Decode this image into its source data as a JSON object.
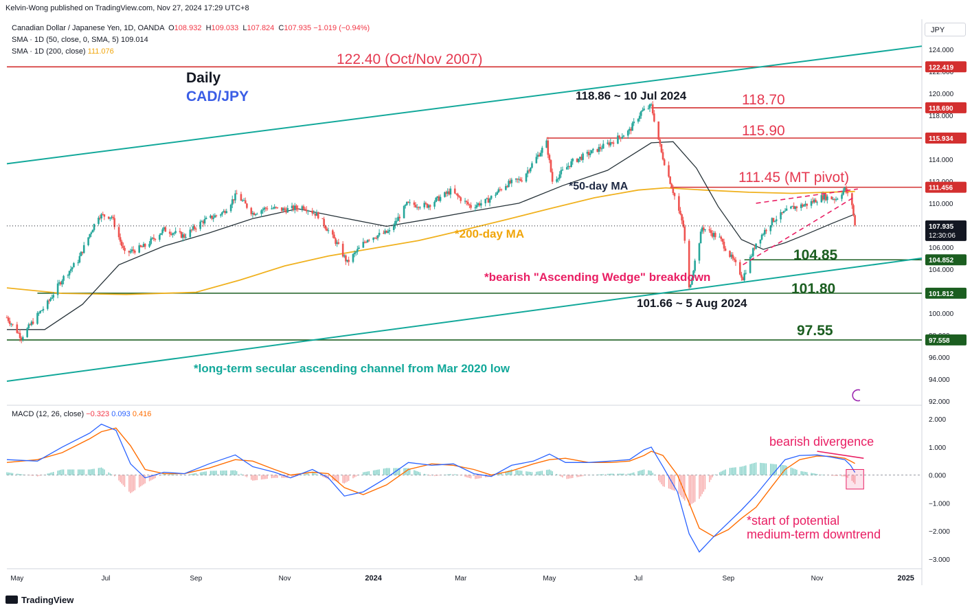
{
  "header": {
    "published": "Kelvin-Wong published on TradingView.com, Nov 27, 2024 17:29 UTC+8",
    "symbol_title": "Canadian Dollar / Japanese Yen, 1D, OANDA",
    "ohlc": {
      "o_label": "O",
      "o": "108.932",
      "h_label": "H",
      "h": "109.033",
      "l_label": "L",
      "l": "107.824",
      "c_label": "C",
      "c": "107.935",
      "change": "−1.019 (−0.94%)"
    },
    "sma50_label": "SMA · 1D (50, close, 0, SMA, 5)",
    "sma50_value": "109.014",
    "sma200_label": "SMA · 1D (200, close)",
    "sma200_value": "111.076",
    "macd_label": "MACD (12, 26, close)",
    "macd_hist": "−0.323",
    "macd_line": "0.093",
    "macd_signal": "0.416",
    "unit": "JPY",
    "countdown": "12:30:06",
    "logo": "TradingView"
  },
  "colors": {
    "bull": "#26a69a",
    "bear": "#ef5350",
    "resistance": "#d32f2f",
    "support": "#1b5e20",
    "channel": "#12a89a",
    "sma50": "#263238",
    "sma200": "#f0b11e",
    "macd": "#2962ff",
    "signal": "#ff6d00",
    "annotation": "#e91e63"
  },
  "annotations": {
    "daily": "Daily",
    "pair": "CAD/JPY",
    "r122": "122.40 (Oct/Nov 2007)",
    "high_jul": "118.86 ~ 10 Jul 2024",
    "r118": "118.70",
    "r115": "115.90",
    "pivot": "111.45 (MT pivot)",
    "ma50": "*50-day MA",
    "ma200": "*200-day MA",
    "s104": "104.85",
    "wedge": "*bearish \"Ascending Wedge\" breakdown",
    "s101": "101.80",
    "low_aug": "101.66 ~ 5 Aug 2024",
    "s97": "97.55",
    "channel": "*long-term secular ascending channel from Mar 2020 low",
    "divergence": "bearish divergence",
    "downtrend1": "*start of potential",
    "downtrend2": "medium-term downtrend"
  },
  "chart_data": [
    {
      "type": "candlestick",
      "title": "Canadian Dollar / Japanese Yen, 1D, OANDA",
      "ylim": [
        91.8,
        126.0
      ],
      "y_ticks": [
        "92.000",
        "94.000",
        "96.000",
        "98.000",
        "100.000",
        "102.000",
        "104.000",
        "106.000",
        "108.000",
        "110.000",
        "112.000",
        "114.000",
        "116.000",
        "118.000",
        "120.000",
        "122.000",
        "124.000"
      ],
      "x_ticks": [
        "May",
        "Jul",
        "Sep",
        "Nov",
        "2024",
        "Mar",
        "May",
        "Jul",
        "Sep",
        "Nov",
        "2025"
      ],
      "x_tick_dates": [
        "2023-05-01",
        "2023-07-01",
        "2023-09-01",
        "2023-11-01",
        "2024-01-01",
        "2024-03-01",
        "2024-05-01",
        "2024-07-01",
        "2024-09-01",
        "2024-11-01",
        "2025-01-01"
      ],
      "x_range": [
        "2023-04-24",
        "2025-01-12"
      ],
      "last_date": "2024-11-27",
      "close_path": [
        [
          "2023-04-24",
          99.6
        ],
        [
          "2023-05-04",
          97.8
        ],
        [
          "2023-05-15",
          99.8
        ],
        [
          "2023-05-22",
          100.9
        ],
        [
          "2023-06-01",
          103.1
        ],
        [
          "2023-06-12",
          104.8
        ],
        [
          "2023-06-20",
          107.2
        ],
        [
          "2023-06-26",
          108.9
        ],
        [
          "2023-07-05",
          108.8
        ],
        [
          "2023-07-14",
          105.4
        ],
        [
          "2023-07-28",
          106.1
        ],
        [
          "2023-08-10",
          107.6
        ],
        [
          "2023-08-24",
          107.0
        ],
        [
          "2023-09-05",
          108.3
        ],
        [
          "2023-09-20",
          109.2
        ],
        [
          "2023-09-29",
          110.8
        ],
        [
          "2023-10-10",
          109.1
        ],
        [
          "2023-10-20",
          109.6
        ],
        [
          "2023-11-01",
          109.4
        ],
        [
          "2023-11-14",
          109.7
        ],
        [
          "2023-11-24",
          108.9
        ],
        [
          "2023-12-07",
          106.3
        ],
        [
          "2023-12-14",
          104.6
        ],
        [
          "2023-12-28",
          106.8
        ],
        [
          "2024-01-12",
          107.4
        ],
        [
          "2024-01-24",
          109.9
        ],
        [
          "2024-02-07",
          109.8
        ],
        [
          "2024-02-23",
          111.1
        ],
        [
          "2024-03-08",
          109.7
        ],
        [
          "2024-03-19",
          110.2
        ],
        [
          "2024-04-01",
          111.7
        ],
        [
          "2024-04-12",
          112.2
        ],
        [
          "2024-04-29",
          115.5
        ],
        [
          "2024-05-03",
          112.0
        ],
        [
          "2024-05-17",
          113.8
        ],
        [
          "2024-06-03",
          114.9
        ],
        [
          "2024-06-13",
          115.6
        ],
        [
          "2024-06-25",
          116.6
        ],
        [
          "2024-07-03",
          118.3
        ],
        [
          "2024-07-10",
          118.86
        ],
        [
          "2024-07-17",
          114.6
        ],
        [
          "2024-07-25",
          111.1
        ],
        [
          "2024-08-01",
          107.9
        ],
        [
          "2024-08-05",
          102.2
        ],
        [
          "2024-08-14",
          107.8
        ],
        [
          "2024-08-26",
          106.8
        ],
        [
          "2024-09-06",
          104.4
        ],
        [
          "2024-09-11",
          103.2
        ],
        [
          "2024-09-20",
          106.4
        ],
        [
          "2024-10-01",
          108.4
        ],
        [
          "2024-10-15",
          109.6
        ],
        [
          "2024-10-25",
          109.9
        ],
        [
          "2024-11-05",
          110.6
        ],
        [
          "2024-11-14",
          110.4
        ],
        [
          "2024-11-20",
          111.3
        ],
        [
          "2024-11-25",
          109.9
        ],
        [
          "2024-11-27",
          107.935
        ]
      ],
      "sma50_path": [
        [
          "2023-04-24",
          98.5
        ],
        [
          "2023-05-20",
          98.5
        ],
        [
          "2023-06-15",
          100.8
        ],
        [
          "2023-07-10",
          104.4
        ],
        [
          "2023-08-10",
          106.1
        ],
        [
          "2023-09-10",
          107.3
        ],
        [
          "2023-10-10",
          108.6
        ],
        [
          "2023-11-10",
          109.5
        ],
        [
          "2023-12-10",
          108.7
        ],
        [
          "2024-01-10",
          107.9
        ],
        [
          "2024-02-10",
          108.6
        ],
        [
          "2024-03-10",
          109.3
        ],
        [
          "2024-04-10",
          110.0
        ],
        [
          "2024-05-10",
          111.6
        ],
        [
          "2024-06-10",
          113.0
        ],
        [
          "2024-07-10",
          115.5
        ],
        [
          "2024-07-25",
          115.6
        ],
        [
          "2024-08-10",
          113.2
        ],
        [
          "2024-08-25",
          109.7
        ],
        [
          "2024-09-10",
          106.7
        ],
        [
          "2024-09-25",
          105.8
        ],
        [
          "2024-10-10",
          106.4
        ],
        [
          "2024-10-25",
          107.2
        ],
        [
          "2024-11-10",
          108.1
        ],
        [
          "2024-11-27",
          109.014
        ]
      ],
      "sma200_path": [
        [
          "2023-04-24",
          102.3
        ],
        [
          "2023-06-01",
          101.8
        ],
        [
          "2023-07-15",
          101.7
        ],
        [
          "2023-09-01",
          101.9
        ],
        [
          "2023-10-01",
          103.0
        ],
        [
          "2023-11-01",
          104.3
        ],
        [
          "2023-12-01",
          105.2
        ],
        [
          "2024-01-01",
          105.9
        ],
        [
          "2024-02-01",
          106.6
        ],
        [
          "2024-03-01",
          107.5
        ],
        [
          "2024-04-01",
          108.5
        ],
        [
          "2024-05-01",
          109.5
        ],
        [
          "2024-06-01",
          110.5
        ],
        [
          "2024-07-01",
          111.2
        ],
        [
          "2024-07-20",
          111.4
        ],
        [
          "2024-08-15",
          111.2
        ],
        [
          "2024-09-15",
          111.0
        ],
        [
          "2024-10-15",
          110.9
        ],
        [
          "2024-11-27",
          111.076
        ]
      ],
      "horizontal_levels": [
        {
          "name": "122.40 (Oct/Nov 2007)",
          "value": 122.419,
          "label": "122.419",
          "color": "#d32f2f"
        },
        {
          "name": "118.70",
          "value": 118.69,
          "label": "118.690",
          "color": "#d32f2f"
        },
        {
          "name": "115.90",
          "value": 115.934,
          "label": "115.934",
          "color": "#d32f2f"
        },
        {
          "name": "111.45 (MT pivot)",
          "value": 111.456,
          "label": "111.456",
          "color": "#d32f2f"
        },
        {
          "name": "104.85",
          "value": 104.852,
          "label": "104.852",
          "color": "#1b5e20"
        },
        {
          "name": "101.80",
          "value": 101.812,
          "label": "101.812",
          "color": "#1b5e20"
        },
        {
          "name": "97.55",
          "value": 97.558,
          "label": "97.558",
          "color": "#1b5e20"
        }
      ],
      "last_price_label": "107.935",
      "channel_upper": [
        [
          "2023-04-24",
          113.6
        ],
        [
          "2025-01-12",
          124.3
        ]
      ],
      "channel_lower": [
        [
          "2023-04-24",
          93.8
        ],
        [
          "2025-01-12",
          105.0
        ]
      ],
      "wedge_upper": [
        [
          "2024-09-20",
          110.0
        ],
        [
          "2024-11-29",
          111.3
        ]
      ],
      "wedge_lower": [
        [
          "2024-09-11",
          104.4
        ],
        [
          "2024-11-27",
          110.6
        ]
      ]
    },
    {
      "type": "line",
      "title": "MACD (12, 26, close)",
      "ylim": [
        -3.3,
        2.25
      ],
      "y_ticks": [
        "−3.000",
        "−2.000",
        "−1.000",
        "0.000",
        "1.000",
        "2.000"
      ],
      "macd_path": [
        [
          "2023-04-24",
          0.55
        ],
        [
          "2023-05-15",
          0.5
        ],
        [
          "2023-06-01",
          1.0
        ],
        [
          "2023-06-20",
          1.5
        ],
        [
          "2023-06-28",
          1.82
        ],
        [
          "2023-07-08",
          1.6
        ],
        [
          "2023-07-18",
          0.4
        ],
        [
          "2023-07-28",
          -0.1
        ],
        [
          "2023-08-10",
          0.1
        ],
        [
          "2023-08-24",
          0.05
        ],
        [
          "2023-09-10",
          0.4
        ],
        [
          "2023-09-28",
          0.72
        ],
        [
          "2023-10-10",
          0.3
        ],
        [
          "2023-10-25",
          0.1
        ],
        [
          "2023-11-05",
          -0.1
        ],
        [
          "2023-11-20",
          0.2
        ],
        [
          "2023-12-01",
          -0.1
        ],
        [
          "2023-12-12",
          -0.75
        ],
        [
          "2023-12-25",
          -0.6
        ],
        [
          "2024-01-10",
          -0.1
        ],
        [
          "2024-01-25",
          0.45
        ],
        [
          "2024-02-10",
          0.35
        ],
        [
          "2024-02-25",
          0.4
        ],
        [
          "2024-03-10",
          0.05
        ],
        [
          "2024-03-22",
          -0.05
        ],
        [
          "2024-04-05",
          0.35
        ],
        [
          "2024-04-20",
          0.5
        ],
        [
          "2024-05-01",
          0.75
        ],
        [
          "2024-05-12",
          0.45
        ],
        [
          "2024-05-28",
          0.45
        ],
        [
          "2024-06-12",
          0.5
        ],
        [
          "2024-06-25",
          0.55
        ],
        [
          "2024-07-05",
          0.9
        ],
        [
          "2024-07-10",
          1.0
        ],
        [
          "2024-07-18",
          0.3
        ],
        [
          "2024-07-28",
          -0.6
        ],
        [
          "2024-08-05",
          -2.1
        ],
        [
          "2024-08-12",
          -2.75
        ],
        [
          "2024-08-22",
          -2.2
        ],
        [
          "2024-09-01",
          -1.7
        ],
        [
          "2024-09-10",
          -1.25
        ],
        [
          "2024-09-20",
          -0.7
        ],
        [
          "2024-10-01",
          0.0
        ],
        [
          "2024-10-10",
          0.55
        ],
        [
          "2024-10-20",
          0.7
        ],
        [
          "2024-11-01",
          0.72
        ],
        [
          "2024-11-10",
          0.65
        ],
        [
          "2024-11-20",
          0.55
        ],
        [
          "2024-11-24",
          0.35
        ],
        [
          "2024-11-27",
          0.093
        ]
      ],
      "signal_path": [
        [
          "2023-04-24",
          0.45
        ],
        [
          "2023-05-15",
          0.55
        ],
        [
          "2023-06-01",
          0.8
        ],
        [
          "2023-06-20",
          1.3
        ],
        [
          "2023-06-28",
          1.55
        ],
        [
          "2023-07-08",
          1.68
        ],
        [
          "2023-07-18",
          1.05
        ],
        [
          "2023-07-28",
          0.2
        ],
        [
          "2023-08-10",
          0.05
        ],
        [
          "2023-08-24",
          0.05
        ],
        [
          "2023-09-10",
          0.25
        ],
        [
          "2023-09-28",
          0.55
        ],
        [
          "2023-10-10",
          0.5
        ],
        [
          "2023-10-25",
          0.2
        ],
        [
          "2023-11-05",
          0.0
        ],
        [
          "2023-11-20",
          0.1
        ],
        [
          "2023-12-01",
          0.05
        ],
        [
          "2023-12-12",
          -0.45
        ],
        [
          "2023-12-25",
          -0.7
        ],
        [
          "2024-01-10",
          -0.35
        ],
        [
          "2024-01-25",
          0.2
        ],
        [
          "2024-02-10",
          0.4
        ],
        [
          "2024-02-25",
          0.35
        ],
        [
          "2024-03-10",
          0.2
        ],
        [
          "2024-03-22",
          0.0
        ],
        [
          "2024-04-05",
          0.15
        ],
        [
          "2024-04-20",
          0.4
        ],
        [
          "2024-05-01",
          0.55
        ],
        [
          "2024-05-12",
          0.6
        ],
        [
          "2024-05-28",
          0.45
        ],
        [
          "2024-06-12",
          0.45
        ],
        [
          "2024-06-25",
          0.5
        ],
        [
          "2024-07-05",
          0.7
        ],
        [
          "2024-07-10",
          0.85
        ],
        [
          "2024-07-18",
          0.7
        ],
        [
          "2024-07-28",
          0.0
        ],
        [
          "2024-08-05",
          -1.0
        ],
        [
          "2024-08-12",
          -1.9
        ],
        [
          "2024-08-22",
          -2.2
        ],
        [
          "2024-09-01",
          -1.95
        ],
        [
          "2024-09-10",
          -1.55
        ],
        [
          "2024-09-20",
          -1.15
        ],
        [
          "2024-10-01",
          -0.4
        ],
        [
          "2024-10-10",
          0.2
        ],
        [
          "2024-10-20",
          0.55
        ],
        [
          "2024-11-01",
          0.68
        ],
        [
          "2024-11-10",
          0.67
        ],
        [
          "2024-11-20",
          0.6
        ],
        [
          "2024-11-24",
          0.5
        ],
        [
          "2024-11-27",
          0.416
        ]
      ],
      "divergence_line": [
        [
          "2024-11-01",
          0.85
        ],
        [
          "2024-12-03",
          0.6
        ]
      ],
      "highlight_box": [
        [
          "2024-11-21",
          0.2
        ],
        [
          "2024-12-03",
          -0.5
        ]
      ]
    }
  ]
}
